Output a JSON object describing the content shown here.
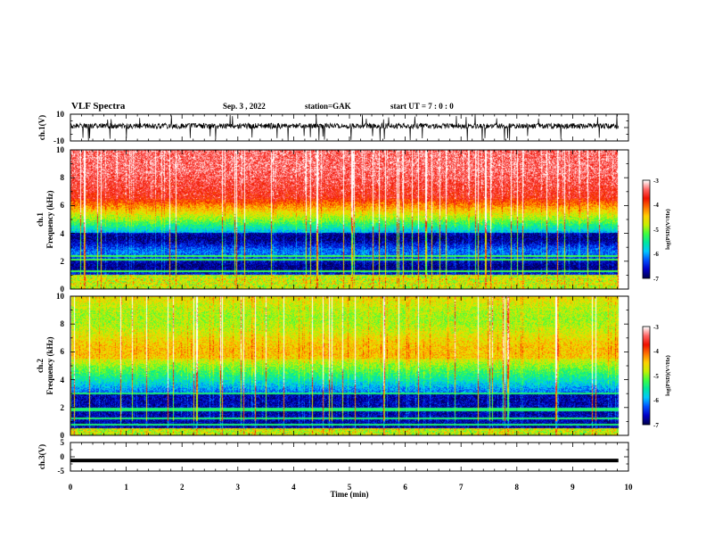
{
  "header": {
    "title": "VLF Spectra",
    "date": "Sep. 3 , 2022",
    "station": "station=GAK",
    "start": "start UT = 7 : 0 : 0"
  },
  "chart_data": [
    {
      "type": "line",
      "name": "ch1-waveform",
      "ylabel": "ch.1(V)",
      "ylim": [
        -10,
        10
      ],
      "yticks": [
        "10",
        "-10"
      ],
      "xlim": [
        0,
        10
      ]
    },
    {
      "type": "heatmap",
      "name": "ch1-spectrogram",
      "ylabel_line1": "ch.1",
      "ylabel_line2": "Frequency (kHz)",
      "ylim": [
        0,
        10
      ],
      "yticks": [
        "0",
        "2",
        "4",
        "6",
        "8",
        "10"
      ],
      "xlim": [
        0,
        10
      ],
      "data_end_min": 9.82,
      "colorbar": {
        "label": "log(PSD)(V²/Hz)",
        "ticks": [
          "-3",
          "-4",
          "-5",
          "-6",
          "-7"
        ],
        "range": [
          -7,
          -3
        ]
      },
      "colormap": [
        "#000050",
        "#0000c8",
        "#0050ff",
        "#00c8ff",
        "#00e8a0",
        "#40ff40",
        "#c8f000",
        "#ffd000",
        "#ff7000",
        "#f01000",
        "#ff6464",
        "#ffffff"
      ],
      "horizontal_lines_khz": [
        2.1,
        2.35,
        1.25,
        0.65,
        0.35
      ]
    },
    {
      "type": "heatmap",
      "name": "ch2-spectrogram",
      "ylabel_line1": "ch.2",
      "ylabel_line2": "Frequency (kHz)",
      "ylim": [
        0,
        10
      ],
      "yticks": [
        "0",
        "2",
        "4",
        "6",
        "8",
        "10"
      ],
      "xlim": [
        0,
        10
      ],
      "data_end_min": 9.82,
      "colorbar": {
        "label": "log(PSD)(V²/Hz)",
        "ticks": [
          "-3",
          "-4",
          "-5",
          "-6",
          "-7"
        ],
        "range": [
          -7,
          -3
        ]
      },
      "horizontal_lines_khz": [
        3.0,
        1.9,
        1.75,
        1.2,
        0.75,
        0.4
      ]
    },
    {
      "type": "line",
      "name": "ch3-waveform",
      "ylabel": "ch.3(V)",
      "ylim": [
        -5,
        5
      ],
      "yticks": [
        "5",
        "0",
        "-5"
      ],
      "xlim": [
        0,
        10
      ],
      "constant_value": -1.3,
      "xlabel": "Time (min)",
      "xticks": [
        "0",
        "1",
        "2",
        "3",
        "4",
        "5",
        "6",
        "7",
        "8",
        "9",
        "10"
      ]
    }
  ]
}
